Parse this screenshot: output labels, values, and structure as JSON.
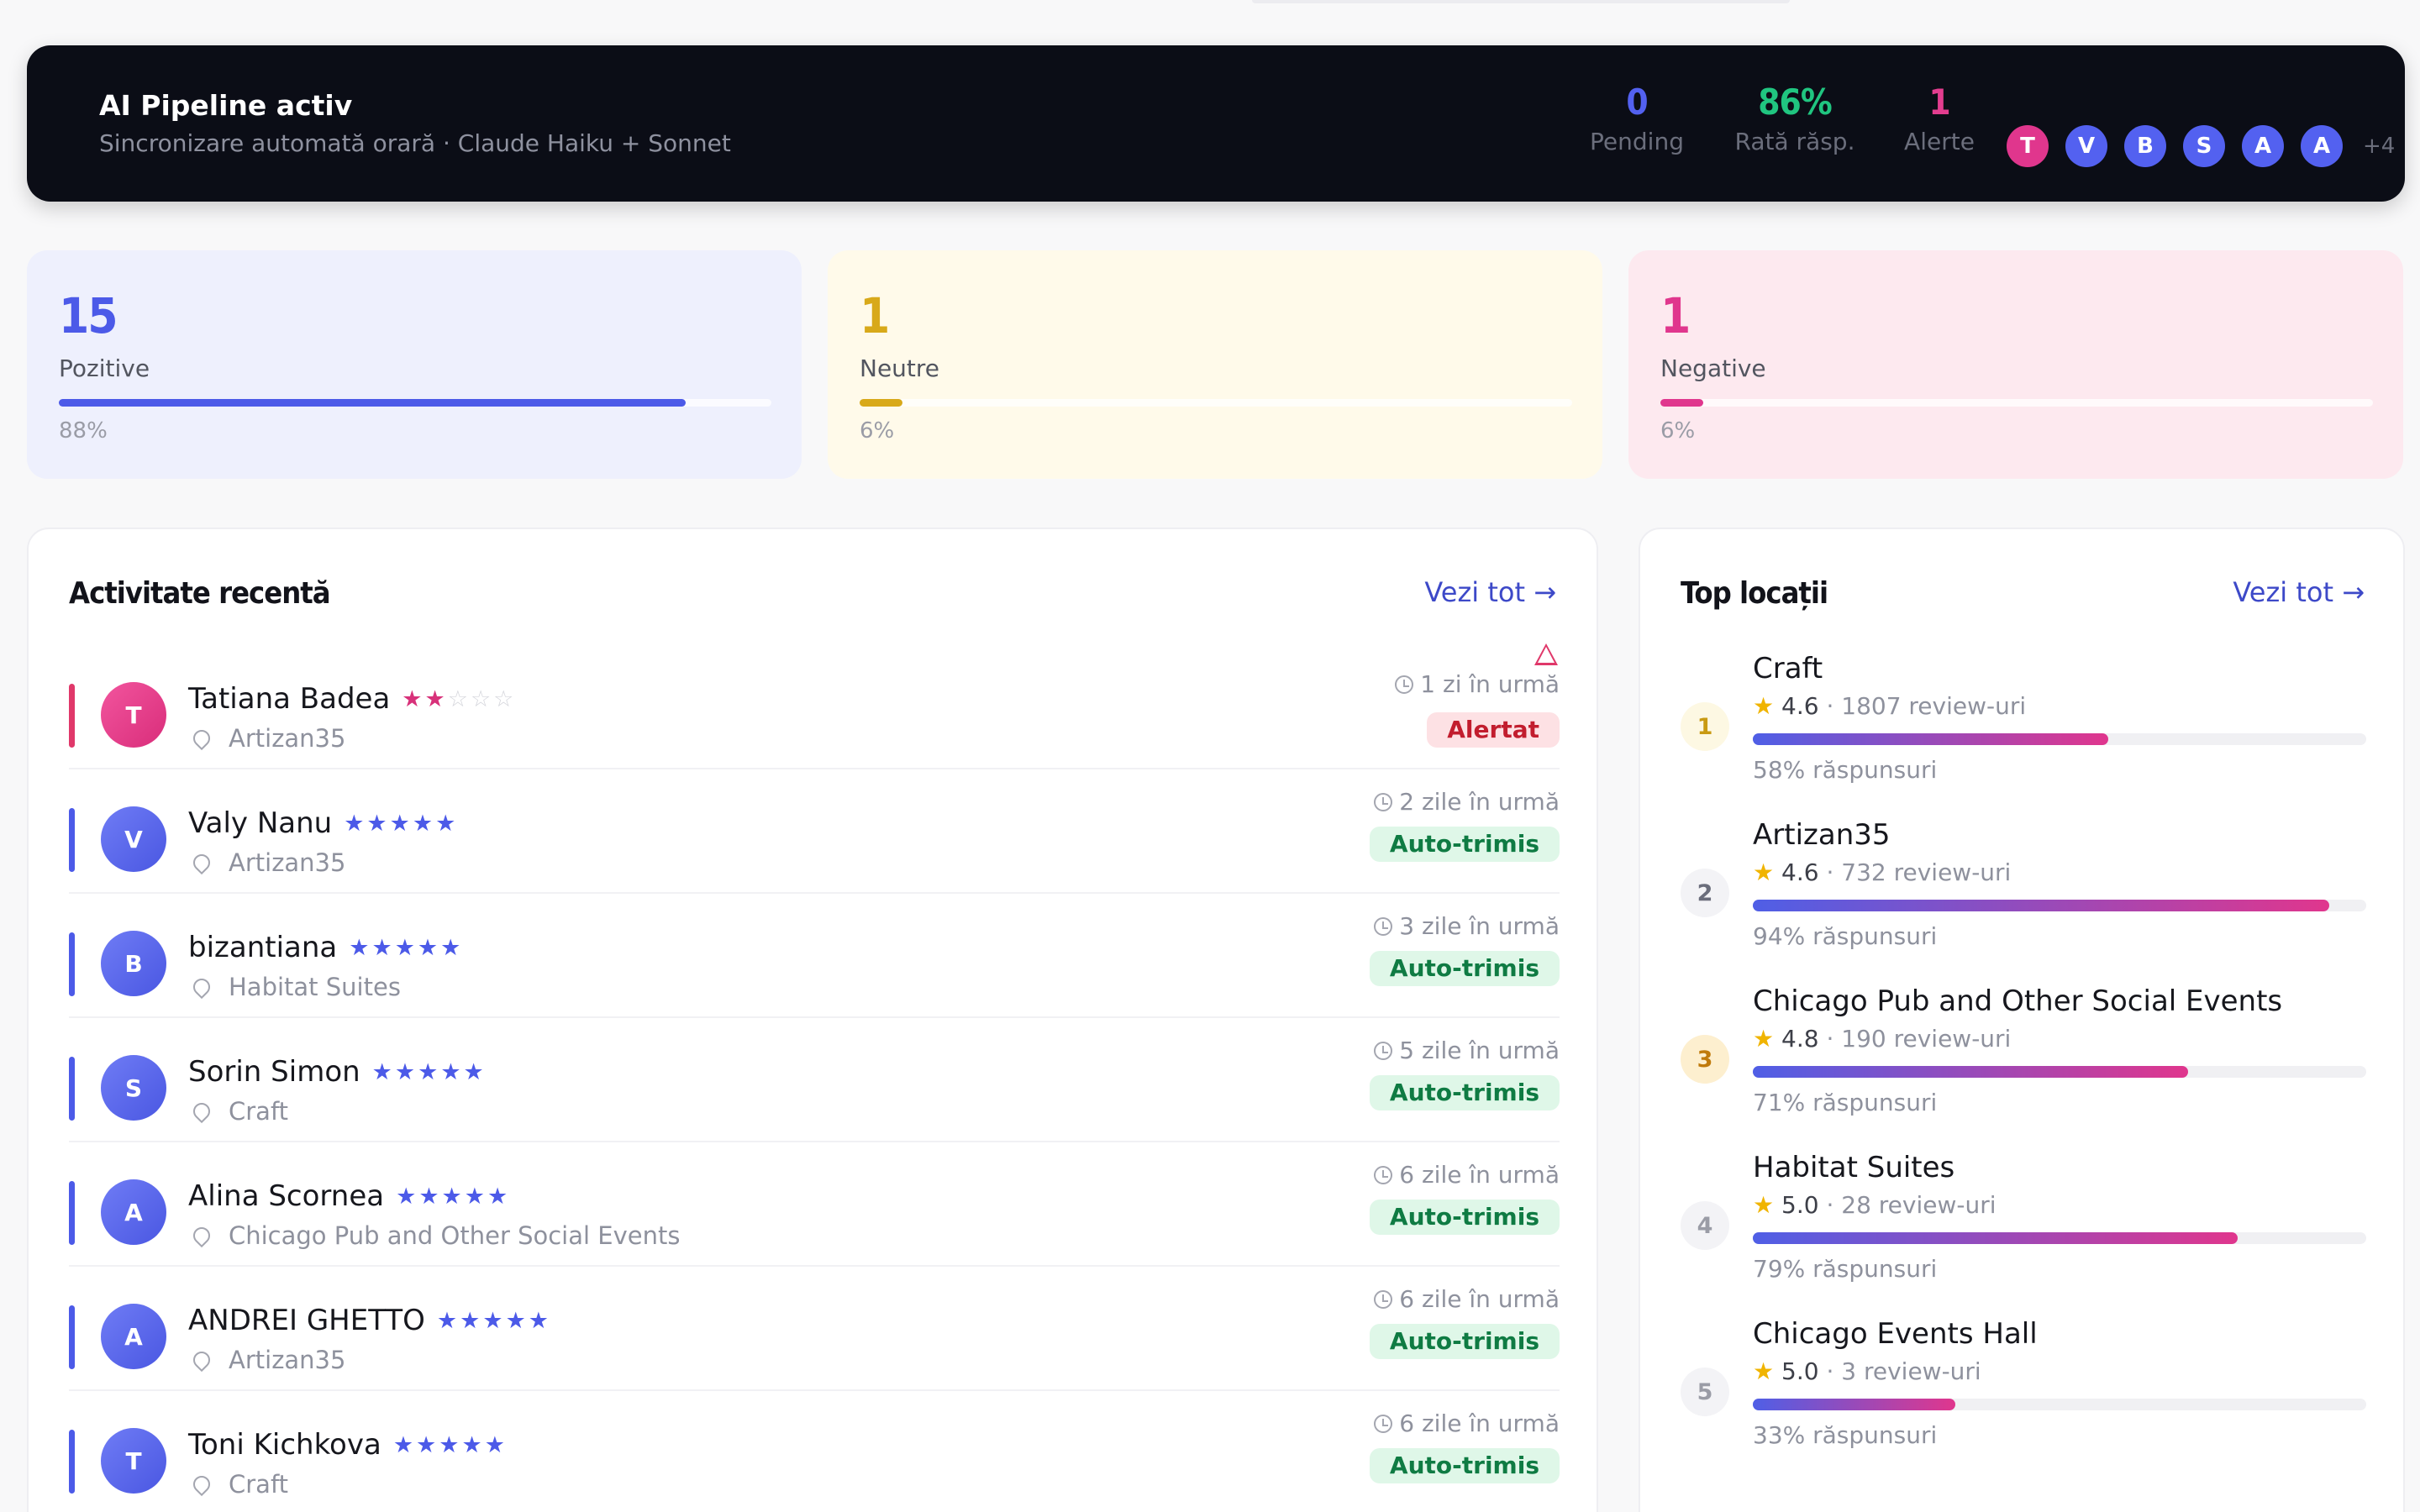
{
  "banner": {
    "title": "AI Pipeline activ",
    "subtitle": "Sincronizare automată orară · Claude Haiku + Sonnet",
    "stats": [
      {
        "value": "0",
        "label": "Pending",
        "color": "#5361f0"
      },
      {
        "value": "86%",
        "label": "Rată răsp.",
        "color": "#20c580"
      },
      {
        "value": "1",
        "label": "Alerte",
        "color": "#e33d8f"
      }
    ],
    "avatars": [
      {
        "letter": "T",
        "color": "#e0368d"
      },
      {
        "letter": "V",
        "color": "#5361f0"
      },
      {
        "letter": "B",
        "color": "#5361f0"
      },
      {
        "letter": "S",
        "color": "#5361f0"
      },
      {
        "letter": "A",
        "color": "#5361f0"
      },
      {
        "letter": "A",
        "color": "#5361f0"
      }
    ],
    "more": "+4"
  },
  "sentiment": [
    {
      "value": "15",
      "label": "Pozitive",
      "pct": "88%",
      "fraction": 0.88,
      "color": "#4c5ae8",
      "bg": "#eef0fd"
    },
    {
      "value": "1",
      "label": "Neutre",
      "pct": "6%",
      "fraction": 0.06,
      "color": "#d8a91a",
      "bg": "#fffaea"
    },
    {
      "value": "1",
      "label": "Negative",
      "pct": "6%",
      "fraction": 0.06,
      "color": "#e0368d",
      "bg": "#fde9ef"
    }
  ],
  "activity": {
    "title": "Activitate recentă",
    "link": "Vezi tot →",
    "rows": [
      {
        "initial": "T",
        "name": "Tatiana Badea",
        "stars": 2,
        "location": "Artizan35",
        "time": "1 zi în urmă",
        "badge": "Alertat",
        "status": "alert"
      },
      {
        "initial": "V",
        "name": "Valy Nanu",
        "stars": 5,
        "location": "Artizan35",
        "time": "2 zile în urmă",
        "badge": "Auto-trimis",
        "status": "auto"
      },
      {
        "initial": "B",
        "name": "bizantiana",
        "stars": 5,
        "location": "Habitat Suites",
        "time": "3 zile în urmă",
        "badge": "Auto-trimis",
        "status": "auto"
      },
      {
        "initial": "S",
        "name": "Sorin Simon",
        "stars": 5,
        "location": "Craft",
        "time": "5 zile în urmă",
        "badge": "Auto-trimis",
        "status": "auto"
      },
      {
        "initial": "A",
        "name": "Alina Scornea",
        "stars": 5,
        "location": "Chicago Pub and Other Social Events",
        "time": "6 zile în urmă",
        "badge": "Auto-trimis",
        "status": "auto"
      },
      {
        "initial": "A",
        "name": "ANDREI GHETTO",
        "stars": 5,
        "location": "Artizan35",
        "time": "6 zile în urmă",
        "badge": "Auto-trimis",
        "status": "auto"
      },
      {
        "initial": "T",
        "name": "Toni Kichkova",
        "stars": 5,
        "location": "Craft",
        "time": "6 zile în urmă",
        "badge": "Auto-trimis",
        "status": "auto"
      }
    ]
  },
  "locations": {
    "title": "Top locații",
    "link": "Vezi tot →",
    "items": [
      {
        "rank": "1",
        "name": "Craft",
        "rating": "4.6",
        "reviews": "1807 review-uri",
        "pct": "58% răspunsuri",
        "fraction": 0.58,
        "rank_bg": "#fdf8e3",
        "rank_color": "#c99a12"
      },
      {
        "rank": "2",
        "name": "Artizan35",
        "rating": "4.6",
        "reviews": "732 review-uri",
        "pct": "94% răspunsuri",
        "fraction": 0.94,
        "rank_bg": "#f3f3f6",
        "rank_color": "#6b6e7c"
      },
      {
        "rank": "3",
        "name": "Chicago Pub and Other Social Events",
        "rating": "4.8",
        "reviews": "190 review-uri",
        "pct": "71% răspunsuri",
        "fraction": 0.71,
        "rank_bg": "#fdefcf",
        "rank_color": "#c07a0c"
      },
      {
        "rank": "4",
        "name": "Habitat Suites",
        "rating": "5.0",
        "reviews": "28 review-uri",
        "pct": "79% răspunsuri",
        "fraction": 0.79,
        "rank_bg": "#f3f3f6",
        "rank_color": "#9a9ca6"
      },
      {
        "rank": "5",
        "name": "Chicago Events Hall",
        "rating": "5.0",
        "reviews": "3 review-uri",
        "pct": "33% răspunsuri",
        "fraction": 0.33,
        "rank_bg": "#f3f3f6",
        "rank_color": "#9a9ca6"
      }
    ]
  }
}
